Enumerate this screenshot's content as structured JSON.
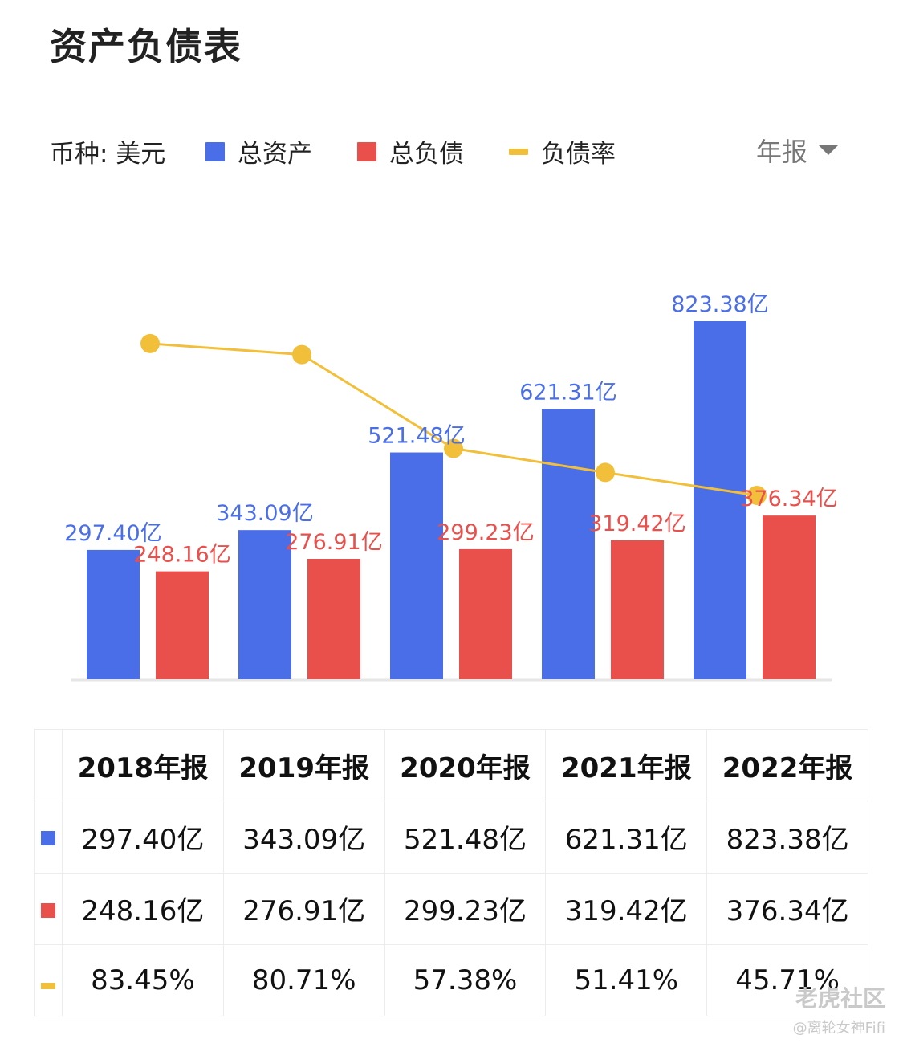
{
  "page": {
    "title": "资产负债表"
  },
  "controls": {
    "currency_label": "币种: 美元",
    "period_label": "年报"
  },
  "legend": [
    {
      "label": "总资产",
      "color": "#4a6ee8"
    },
    {
      "label": "总负债",
      "color": "#e9504c"
    },
    {
      "label": "负债率",
      "color": "#f2bf3a"
    }
  ],
  "chart_data": {
    "type": "bar",
    "categories": [
      "2018年报",
      "2019年报",
      "2020年报",
      "2021年报",
      "2022年报"
    ],
    "series": [
      {
        "name": "总资产",
        "type": "bar",
        "color": "#4a6ee8",
        "values": [
          297.4,
          343.09,
          521.48,
          621.31,
          823.38
        ],
        "labels": [
          "297.40亿",
          "343.09亿",
          "521.48亿",
          "621.31亿",
          "823.38亿"
        ]
      },
      {
        "name": "总负债",
        "type": "bar",
        "color": "#e9504c",
        "values": [
          248.16,
          276.91,
          299.23,
          319.42,
          376.34
        ],
        "labels": [
          "248.16亿",
          "276.91亿",
          "299.23亿",
          "319.42亿",
          "376.34亿"
        ]
      },
      {
        "name": "负债率",
        "type": "line",
        "color": "#f2bf3a",
        "values": [
          83.45,
          80.71,
          57.38,
          51.41,
          45.71
        ],
        "labels": [
          "83.45%",
          "80.71%",
          "57.38%",
          "51.41%",
          "45.71%"
        ]
      }
    ],
    "unit": "亿",
    "ylim": [
      0,
      823.38
    ],
    "line_ylim": [
      0,
      100
    ],
    "legend_position": "top",
    "grid": false
  },
  "table": {
    "headers": [
      "2018年报",
      "2019年报",
      "2020年报",
      "2021年报",
      "2022年报"
    ],
    "rows": [
      {
        "key": "square",
        "color": "#4a6ee8",
        "cells": [
          "297.40亿",
          "343.09亿",
          "521.48亿",
          "621.31亿",
          "823.38亿"
        ]
      },
      {
        "key": "square",
        "color": "#e9504c",
        "cells": [
          "248.16亿",
          "276.91亿",
          "299.23亿",
          "319.42亿",
          "376.34亿"
        ]
      },
      {
        "key": "bar",
        "color": "#f2bf3a",
        "cells": [
          "83.45%",
          "80.71%",
          "57.38%",
          "51.41%",
          "45.71%"
        ]
      }
    ]
  },
  "watermark": {
    "brand": "老虎社区",
    "user": "@离轮女神Fifi"
  }
}
